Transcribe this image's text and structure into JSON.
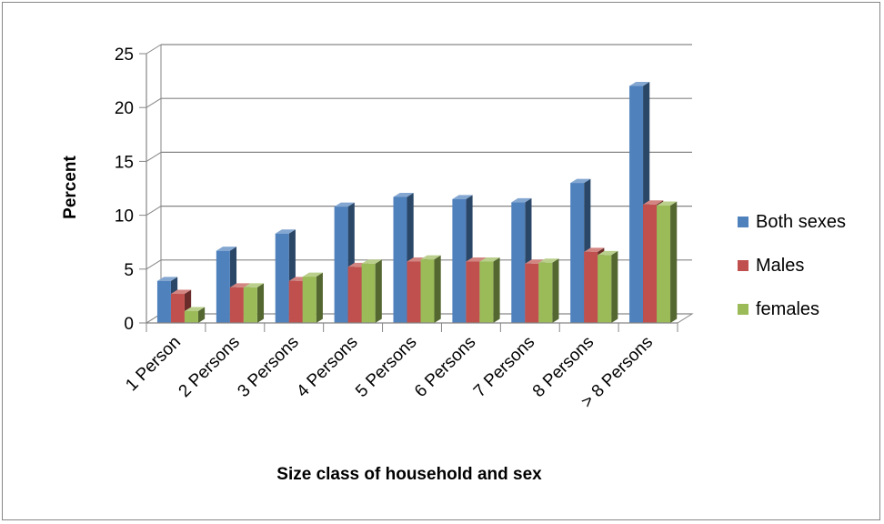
{
  "chart_data": {
    "type": "bar",
    "title": "",
    "xlabel": "Size class of household and sex",
    "ylabel": "Percent",
    "categories": [
      "1 Person",
      "2 Persons",
      "3 Persons",
      "4 Persons",
      "5 Persons",
      "6 Persons",
      "7 Persons",
      "8 Persons",
      "> 8 Persons"
    ],
    "series": [
      {
        "name": "Both sexes",
        "values": [
          3.9,
          6.7,
          8.3,
          10.8,
          11.7,
          11.5,
          11.2,
          13.0,
          22.0
        ]
      },
      {
        "name": "Males",
        "values": [
          2.7,
          3.3,
          3.9,
          5.2,
          5.7,
          5.7,
          5.5,
          6.6,
          11.0
        ]
      },
      {
        "name": "females",
        "values": [
          1.1,
          3.3,
          4.3,
          5.5,
          5.9,
          5.7,
          5.6,
          6.3,
          10.9
        ]
      }
    ],
    "ylim": [
      0,
      25
    ],
    "yticks": [
      0,
      5,
      10,
      15,
      20,
      25
    ],
    "grid": true,
    "legend_position": "right",
    "colors": {
      "Both sexes": "#4f81bd",
      "Males": "#c0504d",
      "females": "#9bbb59"
    }
  }
}
